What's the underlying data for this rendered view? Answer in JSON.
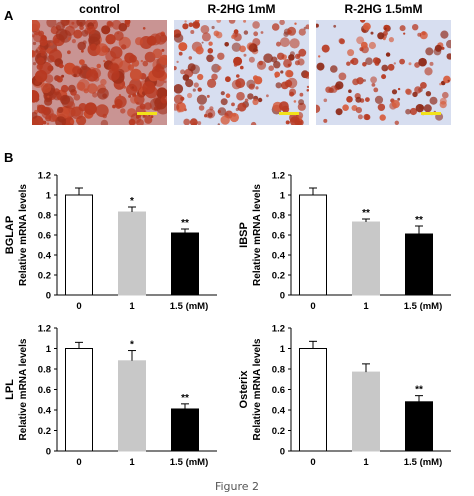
{
  "panel_a": {
    "letter": "A",
    "images": [
      {
        "label": "control",
        "density": 0.92
      },
      {
        "label": "R-2HG 1mM",
        "density": 0.55
      },
      {
        "label": "R-2HG 1.5mM",
        "density": 0.32
      }
    ],
    "colors": {
      "stain": "#b83a22",
      "background": "#d7def0",
      "scale_bar": "#f2e21a"
    }
  },
  "panel_b": {
    "letter": "B"
  },
  "caption": "Figure 2",
  "chart_data": [
    {
      "type": "bar",
      "gene": "BGLAP",
      "ylabel": "Relative mRNA levels",
      "categories": [
        "0",
        "1",
        "1.5 (mM)"
      ],
      "values": [
        1.0,
        0.83,
        0.62
      ],
      "errors": [
        0.07,
        0.05,
        0.04
      ],
      "significance": [
        "",
        "*",
        "**"
      ],
      "ylim": [
        0,
        1.2
      ],
      "yticks": [
        "0",
        "0.2",
        "0.4",
        "0.6",
        "0.8",
        "1",
        "1.2"
      ],
      "bar_colors": [
        "#ffffff",
        "#c8c8c8",
        "#000000"
      ]
    },
    {
      "type": "bar",
      "gene": "IBSP",
      "ylabel": "Relative mRNA levels",
      "categories": [
        "0",
        "1",
        "1.5 (mM)"
      ],
      "values": [
        1.0,
        0.73,
        0.61
      ],
      "errors": [
        0.07,
        0.03,
        0.08
      ],
      "significance": [
        "",
        "**",
        "**"
      ],
      "ylim": [
        0,
        1.2
      ],
      "yticks": [
        "0",
        "0.2",
        "0.4",
        "0.6",
        "0.8",
        "1",
        "1.2"
      ],
      "bar_colors": [
        "#ffffff",
        "#c8c8c8",
        "#000000"
      ]
    },
    {
      "type": "bar",
      "gene": "LPL",
      "ylabel": "Relative mRNA levels",
      "categories": [
        "0",
        "1",
        "1.5 (mM)"
      ],
      "values": [
        1.0,
        0.88,
        0.41
      ],
      "errors": [
        0.06,
        0.1,
        0.05
      ],
      "significance": [
        "",
        "*",
        "**"
      ],
      "ylim": [
        0,
        1.2
      ],
      "yticks": [
        "0",
        "0.2",
        "0.4",
        "0.6",
        "0.8",
        "1",
        "1.2"
      ],
      "bar_colors": [
        "#ffffff",
        "#c8c8c8",
        "#000000"
      ]
    },
    {
      "type": "bar",
      "gene": "Osterix",
      "ylabel": "Relative mRNA levels",
      "categories": [
        "0",
        "1",
        "1.5 (mM)"
      ],
      "values": [
        1.0,
        0.77,
        0.48
      ],
      "errors": [
        0.07,
        0.08,
        0.06
      ],
      "significance": [
        "",
        "",
        "**"
      ],
      "ylim": [
        0,
        1.2
      ],
      "yticks": [
        "0",
        "0.2",
        "0.4",
        "0.6",
        "0.8",
        "1",
        "1.2"
      ],
      "bar_colors": [
        "#ffffff",
        "#c8c8c8",
        "#000000"
      ]
    }
  ]
}
